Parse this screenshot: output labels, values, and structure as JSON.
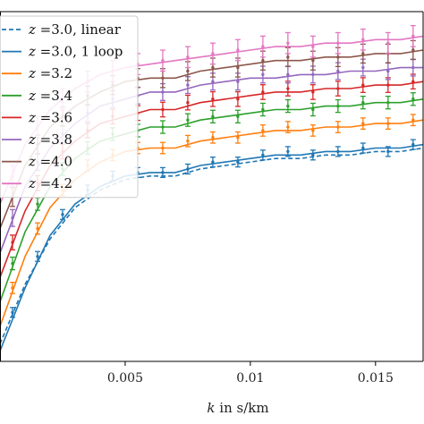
{
  "chart_data": {
    "type": "line",
    "xlabel_var": "k",
    "xlabel_unit": " in s/km",
    "xlim": [
      0.0,
      0.0169
    ],
    "ylim": [
      0.0,
      1.0
    ],
    "x_ticks": [
      0.005,
      0.01,
      0.015
    ],
    "x_tick_labels": [
      "0.005",
      "0.01",
      "0.015"
    ],
    "legend_position": "upper-left",
    "grid": false,
    "series": [
      {
        "name": "3.0, linear",
        "z": 3.0,
        "style": "dashed",
        "color": "#1f77b4",
        "x": [
          0.0,
          0.001,
          0.002,
          0.003,
          0.004,
          0.005,
          0.006,
          0.007,
          0.008,
          0.009,
          0.01,
          0.011,
          0.012,
          0.013,
          0.014,
          0.015,
          0.016,
          0.0169
        ],
        "y": [
          0.05,
          0.22,
          0.35,
          0.44,
          0.49,
          0.52,
          0.53,
          0.53,
          0.55,
          0.56,
          0.57,
          0.58,
          0.58,
          0.59,
          0.59,
          0.6,
          0.6,
          0.61
        ]
      },
      {
        "name": "3.0, 1 loop",
        "z": 3.0,
        "style": "solid",
        "color": "#1f77b4",
        "x": [
          0.0,
          0.001,
          0.002,
          0.003,
          0.004,
          0.005,
          0.006,
          0.007,
          0.008,
          0.009,
          0.01,
          0.011,
          0.012,
          0.013,
          0.014,
          0.015,
          0.016,
          0.0169
        ],
        "y": [
          0.03,
          0.21,
          0.36,
          0.45,
          0.5,
          0.53,
          0.54,
          0.54,
          0.56,
          0.57,
          0.58,
          0.59,
          0.59,
          0.6,
          0.6,
          0.61,
          0.61,
          0.62
        ]
      },
      {
        "name": "3.2",
        "z": 3.2,
        "style": "solid",
        "color": "#ff7f0e",
        "x": [
          0.0,
          0.001,
          0.002,
          0.003,
          0.004,
          0.005,
          0.006,
          0.007,
          0.008,
          0.009,
          0.01,
          0.011,
          0.012,
          0.013,
          0.014,
          0.015,
          0.016,
          0.0169
        ],
        "y": [
          0.1,
          0.3,
          0.44,
          0.52,
          0.57,
          0.6,
          0.61,
          0.61,
          0.63,
          0.64,
          0.65,
          0.66,
          0.66,
          0.67,
          0.67,
          0.68,
          0.68,
          0.69
        ]
      },
      {
        "name": "3.4",
        "z": 3.4,
        "style": "solid",
        "color": "#2ca02c",
        "x": [
          0.0,
          0.001,
          0.002,
          0.003,
          0.004,
          0.005,
          0.006,
          0.007,
          0.008,
          0.009,
          0.01,
          0.011,
          0.012,
          0.013,
          0.014,
          0.015,
          0.016,
          0.0169
        ],
        "y": [
          0.17,
          0.37,
          0.5,
          0.58,
          0.63,
          0.65,
          0.67,
          0.67,
          0.69,
          0.7,
          0.71,
          0.72,
          0.72,
          0.73,
          0.73,
          0.74,
          0.74,
          0.75
        ]
      },
      {
        "name": "3.6",
        "z": 3.6,
        "style": "solid",
        "color": "#d62728",
        "x": [
          0.0,
          0.001,
          0.002,
          0.003,
          0.004,
          0.005,
          0.006,
          0.007,
          0.008,
          0.009,
          0.01,
          0.011,
          0.012,
          0.013,
          0.014,
          0.015,
          0.016,
          0.0169
        ],
        "y": [
          0.24,
          0.43,
          0.56,
          0.63,
          0.68,
          0.7,
          0.72,
          0.72,
          0.74,
          0.75,
          0.76,
          0.77,
          0.77,
          0.78,
          0.78,
          0.79,
          0.79,
          0.8
        ]
      },
      {
        "name": "3.8",
        "z": 3.8,
        "style": "solid",
        "color": "#9467bd",
        "x": [
          0.0,
          0.001,
          0.002,
          0.003,
          0.004,
          0.005,
          0.006,
          0.007,
          0.008,
          0.009,
          0.01,
          0.011,
          0.012,
          0.013,
          0.014,
          0.015,
          0.016,
          0.0169
        ],
        "y": [
          0.31,
          0.5,
          0.61,
          0.68,
          0.73,
          0.75,
          0.77,
          0.77,
          0.79,
          0.8,
          0.81,
          0.81,
          0.82,
          0.82,
          0.83,
          0.83,
          0.84,
          0.84
        ]
      },
      {
        "name": "4.0",
        "z": 4.0,
        "style": "solid",
        "color": "#8c564b",
        "x": [
          0.0,
          0.001,
          0.002,
          0.003,
          0.004,
          0.005,
          0.006,
          0.007,
          0.008,
          0.009,
          0.01,
          0.011,
          0.012,
          0.013,
          0.014,
          0.015,
          0.016,
          0.0169
        ],
        "y": [
          0.38,
          0.56,
          0.67,
          0.73,
          0.77,
          0.8,
          0.81,
          0.81,
          0.83,
          0.84,
          0.85,
          0.86,
          0.86,
          0.87,
          0.87,
          0.88,
          0.88,
          0.89
        ]
      },
      {
        "name": "4.2",
        "z": 4.2,
        "style": "solid",
        "color": "#e377c2",
        "x": [
          0.0,
          0.001,
          0.002,
          0.003,
          0.004,
          0.005,
          0.006,
          0.007,
          0.008,
          0.009,
          0.01,
          0.011,
          0.012,
          0.013,
          0.014,
          0.015,
          0.016,
          0.0169
        ],
        "y": [
          0.45,
          0.62,
          0.72,
          0.78,
          0.82,
          0.84,
          0.85,
          0.86,
          0.87,
          0.88,
          0.89,
          0.9,
          0.9,
          0.91,
          0.91,
          0.92,
          0.92,
          0.93
        ]
      }
    ],
    "measured_points": [
      {
        "z": 3.0,
        "color": "#1f77b4",
        "x": [
          0.0005,
          0.0015,
          0.0025,
          0.0035,
          0.0045,
          0.0055,
          0.0065,
          0.0075,
          0.0085,
          0.0095,
          0.0105,
          0.0115,
          0.0125,
          0.0135,
          0.0145,
          0.0155,
          0.0165
        ],
        "y": [
          0.14,
          0.3,
          0.42,
          0.49,
          0.53,
          0.54,
          0.54,
          0.55,
          0.57,
          0.57,
          0.59,
          0.6,
          0.59,
          0.6,
          0.61,
          0.6,
          0.62
        ],
        "err": 0.014
      },
      {
        "z": 3.2,
        "color": "#ff7f0e",
        "x": [
          0.0005,
          0.0015,
          0.0025,
          0.0035,
          0.0045,
          0.0055,
          0.0065,
          0.0075,
          0.0085,
          0.0095,
          0.0105,
          0.0115,
          0.0125,
          0.0135,
          0.0145,
          0.0155,
          0.0165
        ],
        "y": [
          0.21,
          0.38,
          0.49,
          0.56,
          0.59,
          0.61,
          0.61,
          0.63,
          0.64,
          0.64,
          0.66,
          0.67,
          0.66,
          0.67,
          0.68,
          0.68,
          0.69
        ],
        "err": 0.016
      },
      {
        "z": 3.4,
        "color": "#2ca02c",
        "x": [
          0.0005,
          0.0015,
          0.0025,
          0.0035,
          0.0045,
          0.0055,
          0.0065,
          0.0075,
          0.0085,
          0.0095,
          0.0105,
          0.0115,
          0.0125,
          0.0135,
          0.0145,
          0.0155,
          0.0165
        ],
        "y": [
          0.28,
          0.45,
          0.55,
          0.61,
          0.65,
          0.66,
          0.67,
          0.69,
          0.7,
          0.7,
          0.72,
          0.73,
          0.72,
          0.73,
          0.74,
          0.74,
          0.75
        ],
        "err": 0.018
      },
      {
        "z": 3.6,
        "color": "#d62728",
        "x": [
          0.0005,
          0.0015,
          0.0025,
          0.0035,
          0.0045,
          0.0055,
          0.0065,
          0.0075,
          0.0085,
          0.0095,
          0.0105,
          0.0115,
          0.0125,
          0.0135,
          0.0145,
          0.0155,
          0.0165
        ],
        "y": [
          0.34,
          0.51,
          0.6,
          0.66,
          0.7,
          0.71,
          0.72,
          0.74,
          0.75,
          0.75,
          0.77,
          0.78,
          0.77,
          0.78,
          0.79,
          0.79,
          0.8
        ],
        "err": 0.021
      },
      {
        "z": 3.8,
        "color": "#9467bd",
        "x": [
          0.0005,
          0.0015,
          0.0025,
          0.0035,
          0.0045,
          0.0055,
          0.0065,
          0.0075,
          0.0085,
          0.0095,
          0.0105,
          0.0115,
          0.0125,
          0.0135,
          0.0145,
          0.0155,
          0.0165
        ],
        "y": [
          0.41,
          0.57,
          0.65,
          0.71,
          0.75,
          0.76,
          0.77,
          0.79,
          0.8,
          0.8,
          0.82,
          0.82,
          0.82,
          0.83,
          0.84,
          0.83,
          0.84
        ],
        "err": 0.024
      },
      {
        "z": 4.0,
        "color": "#8c564b",
        "x": [
          0.0005,
          0.0015,
          0.0025,
          0.0035,
          0.0045,
          0.0055,
          0.0065,
          0.0075,
          0.0085,
          0.0095,
          0.0105,
          0.0115,
          0.0125,
          0.0135,
          0.0145,
          0.0155,
          0.0165
        ],
        "y": [
          0.47,
          0.62,
          0.7,
          0.76,
          0.79,
          0.81,
          0.81,
          0.83,
          0.84,
          0.84,
          0.86,
          0.87,
          0.86,
          0.87,
          0.88,
          0.88,
          0.89
        ],
        "err": 0.027
      },
      {
        "z": 4.2,
        "color": "#e377c2",
        "x": [
          0.0005,
          0.0015,
          0.0025,
          0.0035,
          0.0045,
          0.0055,
          0.0065,
          0.0075,
          0.0085,
          0.0095,
          0.0105,
          0.0115,
          0.0125,
          0.0135,
          0.0145,
          0.0155,
          0.0165
        ],
        "y": [
          0.53,
          0.67,
          0.75,
          0.8,
          0.83,
          0.85,
          0.86,
          0.87,
          0.88,
          0.89,
          0.9,
          0.91,
          0.9,
          0.91,
          0.92,
          0.91,
          0.93
        ],
        "err": 0.03
      }
    ],
    "legend": [
      {
        "prefix": "z",
        "label": " =3.0, linear",
        "color": "#1f77b4",
        "style": "dashed"
      },
      {
        "prefix": "z",
        "label": " =3.0, 1 loop",
        "color": "#1f77b4",
        "style": "solid"
      },
      {
        "prefix": "z",
        "label": " =3.2",
        "color": "#ff7f0e",
        "style": "solid"
      },
      {
        "prefix": "z",
        "label": " =3.4",
        "color": "#2ca02c",
        "style": "solid"
      },
      {
        "prefix": "z",
        "label": " =3.6",
        "color": "#d62728",
        "style": "solid"
      },
      {
        "prefix": "z",
        "label": " =3.8",
        "color": "#9467bd",
        "style": "solid"
      },
      {
        "prefix": "z",
        "label": " =4.0",
        "color": "#8c564b",
        "style": "solid"
      },
      {
        "prefix": "z",
        "label": " =4.2",
        "color": "#e377c2",
        "style": "solid"
      }
    ]
  }
}
